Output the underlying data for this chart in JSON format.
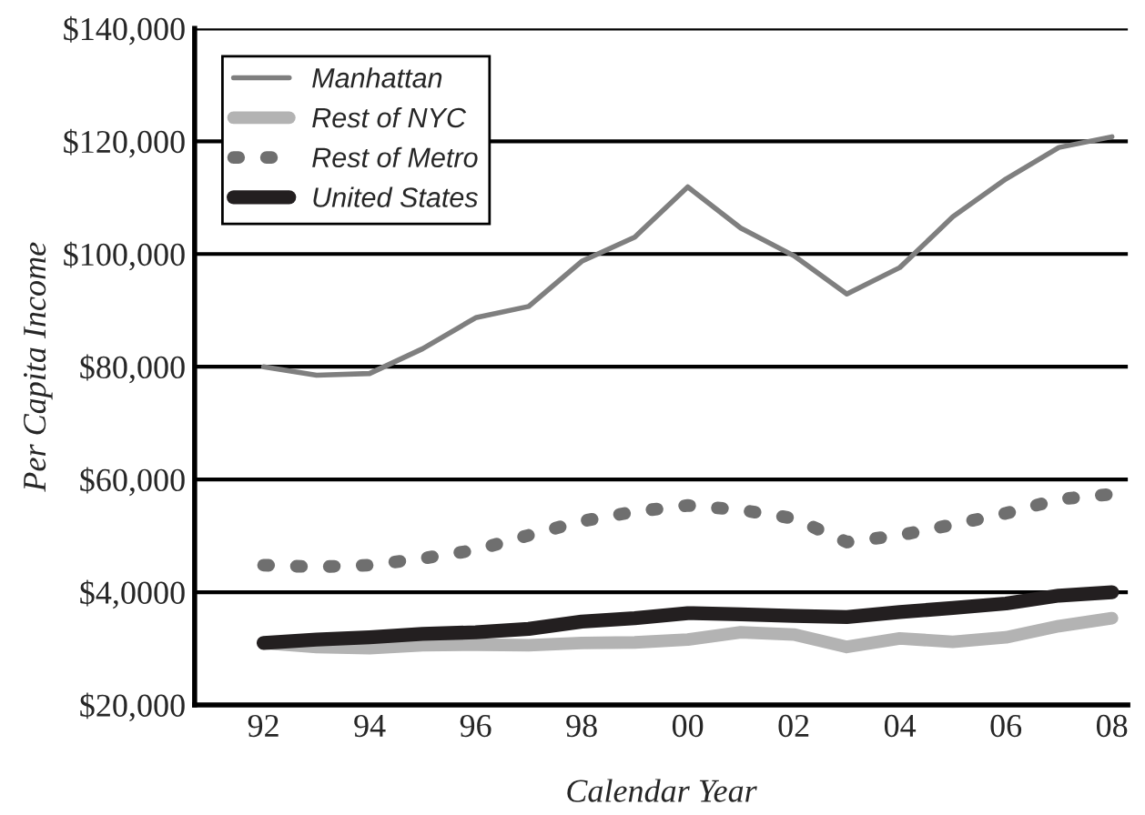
{
  "chart_data": {
    "type": "line",
    "xlabel": "Calendar Year",
    "ylabel": "Per Capita Income",
    "x": [
      1992,
      1993,
      1994,
      1995,
      1996,
      1997,
      1998,
      1999,
      2000,
      2001,
      2002,
      2003,
      2004,
      2005,
      2006,
      2007,
      2008
    ],
    "series": [
      {
        "name": "Manhattan",
        "color": "#7f7f7f",
        "line_style": "solid",
        "values": [
          80000,
          78500,
          78800,
          83200,
          88700,
          90700,
          98700,
          103000,
          111900,
          104600,
          99700,
          92900,
          97600,
          106600,
          113300,
          118900,
          120800
        ]
      },
      {
        "name": "Rest of NYC",
        "color": "#b3b3b3",
        "line_style": "solid",
        "values": [
          31000,
          30300,
          30100,
          30600,
          30700,
          30600,
          31000,
          31100,
          31600,
          32900,
          32500,
          30300,
          31800,
          31200,
          32000,
          34000,
          35400
        ]
      },
      {
        "name": "Rest of Metro",
        "color": "#6f6f6f",
        "line_style": "dotted",
        "values": [
          44800,
          44500,
          44800,
          46000,
          47500,
          50100,
          52600,
          54300,
          55400,
          54600,
          53100,
          48900,
          50100,
          52000,
          54000,
          56500,
          57400
        ]
      },
      {
        "name": "United States",
        "color": "#231f20",
        "line_style": "solid",
        "values": [
          31000,
          31600,
          32000,
          32600,
          32900,
          33500,
          34800,
          35400,
          36300,
          36100,
          35800,
          35600,
          36500,
          37200,
          38000,
          39400,
          40000
        ]
      }
    ],
    "xlim": [
      1990.7,
      2008.3
    ],
    "xticks": [
      {
        "value": 1992,
        "label": "92"
      },
      {
        "value": 1994,
        "label": "94"
      },
      {
        "value": 1996,
        "label": "96"
      },
      {
        "value": 1998,
        "label": "98"
      },
      {
        "value": 2000,
        "label": "00"
      },
      {
        "value": 2002,
        "label": "02"
      },
      {
        "value": 2004,
        "label": "04"
      },
      {
        "value": 2006,
        "label": "06"
      },
      {
        "value": 2008,
        "label": "08"
      }
    ],
    "ylim": [
      20000,
      140000
    ],
    "yticks": [
      {
        "value": 20000,
        "label": "$20,000"
      },
      {
        "value": 40000,
        "label": "$4,0000"
      },
      {
        "value": 60000,
        "label": "$60,000"
      },
      {
        "value": 80000,
        "label": "$80,000"
      },
      {
        "value": 100000,
        "label": "$100,000"
      },
      {
        "value": 120000,
        "label": "$120,000"
      },
      {
        "value": 140000,
        "label": "$140,000"
      }
    ],
    "grid": "y",
    "legend": "top left",
    "marker": "none"
  }
}
